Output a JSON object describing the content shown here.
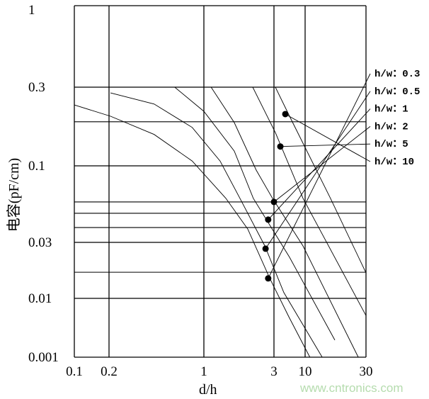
{
  "chart_data": {
    "type": "line",
    "title": "",
    "xlabel": "d/h",
    "ylabel": "电容(pF/cm)",
    "x_ticks": [
      0.1,
      0.2,
      1,
      3,
      10,
      30
    ],
    "x_tick_labels": [
      "0.1",
      "0.2",
      "1",
      "3",
      "10",
      "30"
    ],
    "y_ticks": [
      1,
      0.3,
      0.1,
      0.03,
      0.01,
      0.001
    ],
    "y_tick_labels": [
      "1",
      "0.3",
      "0.1",
      "0.03",
      "0.01",
      "0.001"
    ],
    "xlim": [
      0.1,
      30
    ],
    "ylim": [
      0.001,
      1
    ],
    "grid": true,
    "extra_y_gridlines": [
      0.185,
      0.0567,
      0.0474,
      0.0379,
      0.0167
    ],
    "series": [
      {
        "name": "h/w：0.3",
        "points": [
          [
            0.1,
            0.234
          ],
          [
            0.205,
            0.2
          ],
          [
            0.43,
            0.155
          ],
          [
            0.82,
            0.107
          ],
          [
            1.41,
            0.06
          ],
          [
            1.99,
            0.037
          ],
          [
            2.81,
            0.0148
          ],
          [
            5.33,
            0.00486
          ],
          [
            10.9,
            0.001
          ]
        ],
        "marker": [
          2.74,
          0.0148
        ]
      },
      {
        "name": "h/w：0.5",
        "points": [
          [
            0.205,
            0.277
          ],
          [
            0.43,
            0.237
          ],
          [
            0.82,
            0.171
          ],
          [
            1.29,
            0.107
          ],
          [
            1.76,
            0.06
          ],
          [
            2.6,
            0.028
          ],
          [
            4.4,
            0.0112
          ],
          [
            13.6,
            0.001
          ]
        ],
        "marker": [
          2.63,
          0.0265
        ]
      },
      {
        "name": "h/w：1",
        "points": [
          [
            0.61,
            0.3
          ],
          [
            1,
            0.214
          ],
          [
            1.61,
            0.123
          ],
          [
            2.17,
            0.06
          ],
          [
            5.48,
            0.0224
          ],
          [
            17.1,
            0.00195
          ]
        ],
        "marker": [
          2.74,
          0.0429
        ]
      },
      {
        "name": "h/w：2",
        "points": [
          [
            1.12,
            0.3
          ],
          [
            1.61,
            0.183
          ],
          [
            2.27,
            0.0935
          ],
          [
            2.93,
            0.06
          ],
          [
            9.2,
            0.028
          ],
          [
            26.1,
            0.001
          ]
        ],
        "marker": [
          3,
          0.0567
        ]
      },
      {
        "name": "h/w：5",
        "points": [
          [
            2.15,
            0.3
          ],
          [
            3.17,
            0.159
          ],
          [
            9.2,
            0.06
          ],
          [
            30,
            0.0051
          ]
        ],
        "marker": [
          3.84,
          0.131
        ]
      },
      {
        "name": "h/w：10",
        "points": [
          [
            3.17,
            0.3
          ],
          [
            5.48,
            0.2
          ],
          [
            15.8,
            0.06
          ],
          [
            30,
            0.0165
          ]
        ],
        "marker": [
          4.65,
          0.206
        ]
      }
    ],
    "legend_labels": [
      "h/w：0.3",
      "h/w：0.5",
      "h/w：1",
      "h/w：2",
      "h/w：5",
      "h/w：10"
    ],
    "legend_placement": "right",
    "colors": {
      "line": "#000000",
      "watermark": "#b5dcae"
    }
  },
  "watermark": "www.cntronics.com"
}
